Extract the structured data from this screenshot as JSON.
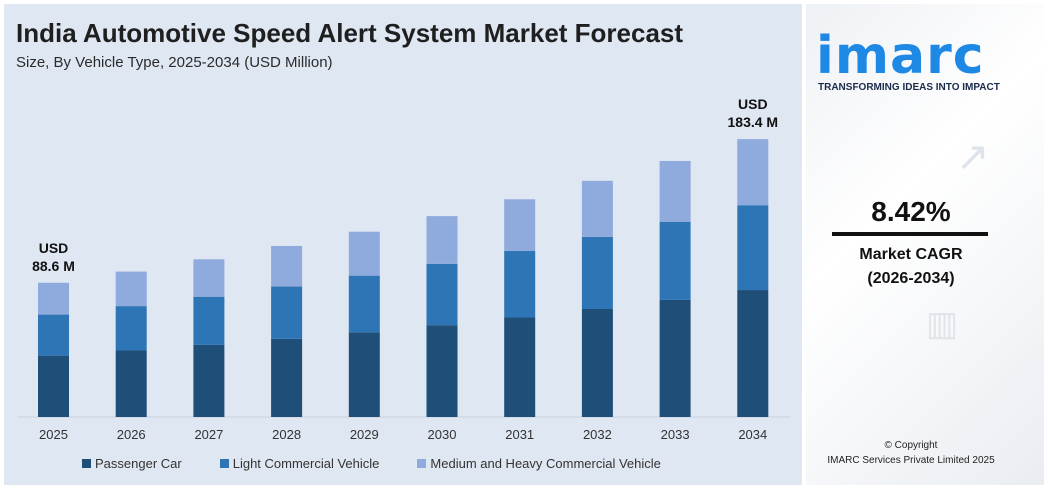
{
  "title": "India Automotive Speed Alert System Market Forecast",
  "subtitle": "Size, By Vehicle Type, 2025-2034 (USD Million)",
  "annotations": {
    "first_currency": "USD",
    "first_value": "88.6 M",
    "last_currency": "USD",
    "last_value": "183.4 M"
  },
  "colors": {
    "passenger": "#1f4e79",
    "lcv": "#2e75b6",
    "mhcv": "#8faadc",
    "axis": "#c8d0dc"
  },
  "sidebar": {
    "logo": "imarc",
    "tagline": "TRANSFORMING IDEAS INTO IMPACT",
    "cagr_value": "8.42%",
    "cagr_label": "Market CAGR",
    "cagr_period": "(2026-2034)",
    "copyright": "© Copyright",
    "copyright_company": "IMARC Services Private Limited 2025"
  },
  "chart_data": {
    "type": "bar",
    "stacked": true,
    "categories": [
      "2025",
      "2026",
      "2027",
      "2028",
      "2029",
      "2030",
      "2031",
      "2032",
      "2033",
      "2034"
    ],
    "series": [
      {
        "name": "Passenger Car",
        "values": [
          40.5,
          43.9,
          47.6,
          51.6,
          55.9,
          60.6,
          65.7,
          71.3,
          77.3,
          83.8
        ]
      },
      {
        "name": "Light Commercial Vehicle",
        "values": [
          27.1,
          29.3,
          31.8,
          34.5,
          37.4,
          40.5,
          43.9,
          47.6,
          51.6,
          56.0
        ]
      },
      {
        "name": "Medium and Heavy Commercial Vehicle",
        "values": [
          21.0,
          22.8,
          24.7,
          26.8,
          29.0,
          31.5,
          34.1,
          37.0,
          40.1,
          43.6
        ]
      }
    ],
    "ylim": [
      0,
      200
    ],
    "grid": false,
    "legend_position": "bottom"
  }
}
